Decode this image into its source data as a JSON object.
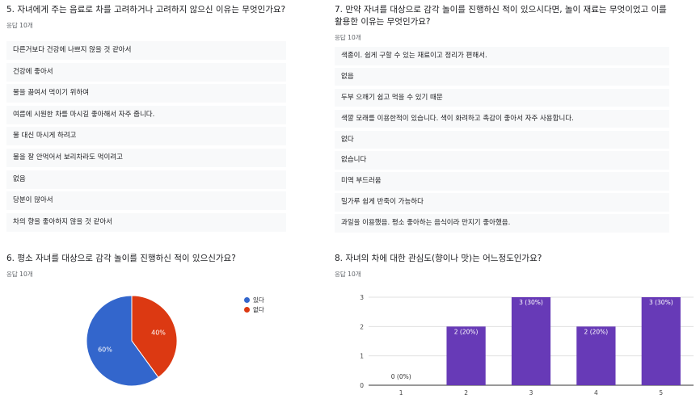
{
  "q5": {
    "title": "5. 자녀에게 주는 음료로 차를 고려하거나 고려하지 않으신 이유는 무엇인가요?",
    "count": "응답 10개",
    "responses": [
      "다른거보다 건강에 나쁘지 않을 것 같아서",
      "건강에 좋아서",
      "물을 끓여서 먹이기 위하여",
      "여름에 시원한 차를 마시길 좋아해서 자주 줍니다.",
      "물 대신 마시게 하려고",
      "물을 잘 안먹어서 보리차라도 먹이려고",
      "없음",
      "당분이 많아서",
      "차의 향을 좋아하지 않을 것 같아서"
    ]
  },
  "q7": {
    "title": "7. 만약 자녀를 대상으로 감각 놀이를 진행하신 적이 있으시다면, 놀이 재료는 무엇이었고 이를 활용한 이유는 무엇인가요?",
    "count": "응답 10개",
    "responses": [
      "색종이. 쉽게 구할 수 있는 재료이고 정리가 편해서.",
      "없음",
      "두부 으깨기 쉽고 먹을 수 있기 때문",
      "색깔 모래를 이용한적이 있습니다. 색이 화려하고 촉감이 좋아서 자주 사용합니다.",
      "없다",
      "없습니다",
      "미역 부드러움",
      "밀가루 쉽게 반죽이 가능하다",
      "과일을 이용했음. 평소 좋아하는 음식이라 만지기 좋아했음."
    ]
  },
  "q6": {
    "title": "6. 평소 자녀를 대상으로 감각 놀이를 진행하신 적이 있으신가요?",
    "count": "응답 10개",
    "chart_data": {
      "type": "pie",
      "labels": [
        "있다",
        "없다"
      ],
      "values": [
        60,
        40
      ],
      "value_labels": [
        "60%",
        "40%"
      ],
      "colors": [
        "#3366cc",
        "#dc3912"
      ],
      "legend_position": "right"
    }
  },
  "q8": {
    "title": "8. 자녀의 차에 대한 관심도(향이나 맛)는 어느정도인가요?",
    "count": "응답 10개",
    "chart_data": {
      "type": "bar",
      "categories": [
        "1",
        "2",
        "3",
        "4",
        "5"
      ],
      "values": [
        0,
        2,
        3,
        2,
        3
      ],
      "value_labels": [
        "0 (0%)",
        "2 (20%)",
        "3 (30%)",
        "2 (20%)",
        "3 (30%)"
      ],
      "ylim": [
        0,
        3
      ],
      "yticks": [
        "0",
        "1",
        "2",
        "3"
      ],
      "bar_color": "#673ab7",
      "grid": true
    }
  }
}
